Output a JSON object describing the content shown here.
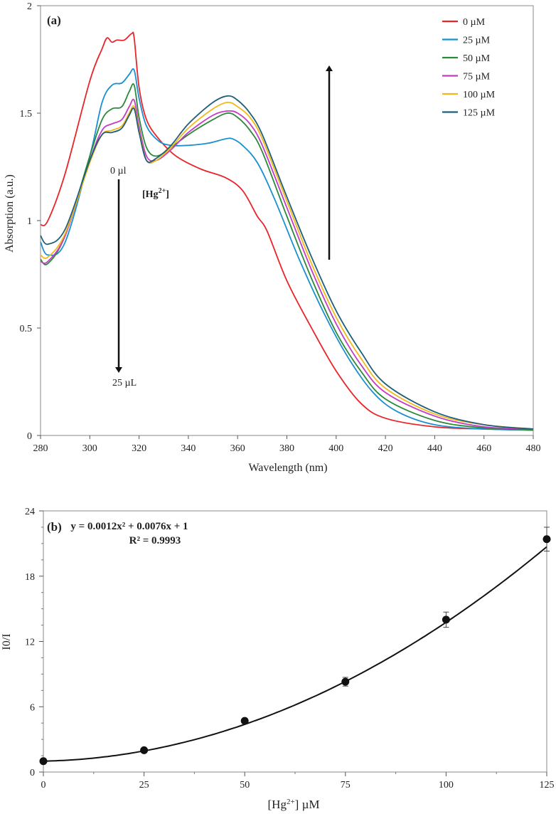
{
  "chart_data": [
    {
      "panel": "(a)",
      "type": "line",
      "title": "",
      "xlabel": "Wavelength (nm)",
      "ylabel": "Absorption (a.u.)",
      "xlim": [
        280,
        480
      ],
      "ylim": [
        0,
        2
      ],
      "xticks": [
        280,
        300,
        320,
        340,
        360,
        380,
        400,
        420,
        440,
        460,
        480
      ],
      "yticks": [
        0,
        0.5,
        1,
        1.5,
        2
      ],
      "ytick_labels": [
        "0",
        "0.5",
        "1",
        "1.5",
        "2"
      ],
      "legend_position": "top-right",
      "annotations": {
        "top_label": "0 µl",
        "bottom_label": "25 µL",
        "ion_label": "[Hg",
        "ion_charge": "2+",
        "ion_close": "]"
      },
      "series": [
        {
          "name": "0 µM",
          "color": "#e8252a",
          "x": [
            280,
            283,
            290,
            300,
            305,
            307,
            309,
            311,
            314,
            317,
            318,
            320,
            323,
            328,
            335,
            345,
            355,
            362,
            368,
            372,
            380,
            390,
            400,
            410,
            420,
            440,
            460,
            480
          ],
          "y": [
            0.98,
            1.0,
            1.22,
            1.65,
            1.8,
            1.85,
            1.83,
            1.84,
            1.84,
            1.87,
            1.85,
            1.62,
            1.47,
            1.38,
            1.3,
            1.24,
            1.2,
            1.14,
            1.02,
            0.95,
            0.72,
            0.5,
            0.3,
            0.15,
            0.08,
            0.04,
            0.03,
            0.025
          ]
        },
        {
          "name": "25 µM",
          "color": "#1a8fd0",
          "x": [
            280,
            283,
            290,
            300,
            305,
            309,
            313,
            316,
            318,
            320,
            323,
            328,
            333,
            340,
            348,
            355,
            358,
            362,
            368,
            375,
            385,
            395,
            405,
            415,
            425,
            440,
            460,
            480
          ],
          "y": [
            0.9,
            0.84,
            0.9,
            1.3,
            1.55,
            1.63,
            1.64,
            1.68,
            1.7,
            1.57,
            1.44,
            1.37,
            1.35,
            1.35,
            1.36,
            1.38,
            1.38,
            1.35,
            1.27,
            1.1,
            0.82,
            0.57,
            0.36,
            0.2,
            0.11,
            0.05,
            0.03,
            0.025
          ]
        },
        {
          "name": "50 µM",
          "color": "#2a8a3a",
          "x": [
            280,
            283,
            290,
            300,
            305,
            309,
            313,
            316,
            318,
            320,
            323,
            327,
            333,
            340,
            350,
            356,
            360,
            365,
            370,
            380,
            390,
            400,
            410,
            420,
            440,
            460,
            480
          ],
          "y": [
            0.82,
            0.8,
            0.93,
            1.3,
            1.47,
            1.52,
            1.53,
            1.6,
            1.63,
            1.48,
            1.34,
            1.3,
            1.34,
            1.4,
            1.47,
            1.5,
            1.48,
            1.42,
            1.32,
            1.02,
            0.73,
            0.48,
            0.3,
            0.17,
            0.07,
            0.035,
            0.025
          ]
        },
        {
          "name": "75 µM",
          "color": "#c43cc4",
          "x": [
            280,
            283,
            290,
            300,
            305,
            309,
            313,
            316,
            318,
            320,
            323,
            327,
            333,
            340,
            350,
            356,
            360,
            365,
            370,
            380,
            390,
            400,
            410,
            420,
            440,
            460,
            480
          ],
          "y": [
            0.81,
            0.81,
            0.93,
            1.28,
            1.42,
            1.45,
            1.47,
            1.53,
            1.56,
            1.44,
            1.3,
            1.28,
            1.33,
            1.41,
            1.49,
            1.51,
            1.5,
            1.45,
            1.35,
            1.06,
            0.77,
            0.52,
            0.33,
            0.2,
            0.09,
            0.04,
            0.03
          ]
        },
        {
          "name": "100 µM",
          "color": "#f2b81c",
          "x": [
            280,
            283,
            290,
            300,
            305,
            309,
            313,
            316,
            318,
            320,
            323,
            327,
            333,
            340,
            350,
            356,
            360,
            365,
            370,
            380,
            390,
            400,
            410,
            420,
            440,
            460,
            480
          ],
          "y": [
            0.84,
            0.83,
            0.94,
            1.27,
            1.4,
            1.42,
            1.44,
            1.5,
            1.53,
            1.42,
            1.28,
            1.28,
            1.34,
            1.43,
            1.52,
            1.55,
            1.53,
            1.48,
            1.38,
            1.09,
            0.8,
            0.55,
            0.36,
            0.22,
            0.1,
            0.05,
            0.03
          ]
        },
        {
          "name": "125 µM",
          "color": "#1e5f7a",
          "x": [
            280,
            283,
            290,
            300,
            305,
            309,
            313,
            316,
            318,
            320,
            323,
            327,
            333,
            340,
            350,
            356,
            360,
            365,
            370,
            380,
            390,
            400,
            410,
            420,
            440,
            460,
            480
          ],
          "y": [
            0.93,
            0.89,
            0.96,
            1.28,
            1.4,
            1.41,
            1.43,
            1.49,
            1.52,
            1.41,
            1.28,
            1.29,
            1.35,
            1.45,
            1.55,
            1.58,
            1.56,
            1.5,
            1.4,
            1.11,
            0.83,
            0.58,
            0.39,
            0.24,
            0.11,
            0.05,
            0.03
          ]
        }
      ]
    },
    {
      "panel": "(b)",
      "type": "scatter",
      "title": "",
      "xlabel_prefix": "[Hg",
      "xlabel_charge": "2+",
      "xlabel_suffix": "] µM",
      "ylabel": "I0/I",
      "xlim": [
        0,
        125
      ],
      "ylim": [
        0,
        24
      ],
      "xticks": [
        0,
        25,
        50,
        75,
        100,
        125
      ],
      "yticks": [
        0,
        6,
        12,
        18,
        24
      ],
      "fit_equation": "y = 0.0012x² + 0.0076x + 1",
      "fit_r2": "R² = 0.9993",
      "fit_coefficients": {
        "a": 0.0012,
        "b": 0.0076,
        "c": 1
      },
      "points": {
        "x": [
          0,
          25,
          50,
          75,
          100,
          125
        ],
        "y": [
          1.0,
          2.0,
          4.7,
          8.3,
          14.0,
          21.4
        ],
        "error": [
          0,
          0,
          0,
          0.4,
          0.7,
          1.1
        ]
      }
    }
  ]
}
